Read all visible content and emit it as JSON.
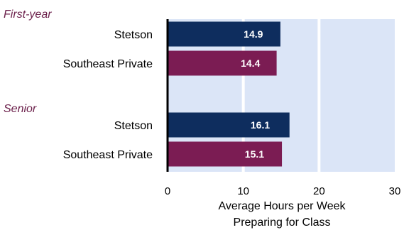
{
  "chart_data": {
    "type": "bar",
    "orientation": "horizontal",
    "groups": [
      {
        "label": "First-year",
        "bars": [
          {
            "category": "Stetson",
            "value": 14.9,
            "value_label": "14.9"
          },
          {
            "category": "Southeast Private",
            "value": 14.4,
            "value_label": "14.4"
          }
        ]
      },
      {
        "label": "Senior",
        "bars": [
          {
            "category": "Stetson",
            "value": 16.1,
            "value_label": "16.1"
          },
          {
            "category": "Southeast Private",
            "value": 15.1,
            "value_label": "15.1"
          }
        ]
      }
    ],
    "xlabel_lines": [
      "Average Hours per Week",
      "Preparing for Class"
    ],
    "xlim": [
      0,
      30
    ],
    "xticks": [
      0,
      10,
      20,
      30
    ],
    "grid": true,
    "legend": "none"
  },
  "colors": {
    "stetson": "#0e2d5e",
    "southeast_private": "#7b1c53",
    "group_label": "#6b1f4a",
    "plot_background": "#dbe5f7",
    "gridline": "#ffffff",
    "axis": "#000000"
  }
}
